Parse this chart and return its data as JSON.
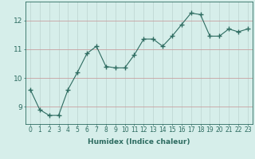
{
  "title": "",
  "xlabel": "Humidex (Indice chaleur)",
  "ylabel": "",
  "x": [
    0,
    1,
    2,
    3,
    4,
    5,
    6,
    7,
    8,
    9,
    10,
    11,
    12,
    13,
    14,
    15,
    16,
    17,
    18,
    19,
    20,
    21,
    22,
    23
  ],
  "y": [
    9.6,
    8.9,
    8.7,
    8.7,
    9.6,
    10.2,
    10.85,
    11.1,
    10.4,
    10.35,
    10.35,
    10.8,
    11.35,
    11.35,
    11.1,
    11.45,
    11.85,
    12.25,
    12.2,
    11.45,
    11.45,
    11.7,
    11.6,
    11.7
  ],
  "line_color": "#2d6b60",
  "marker": "+",
  "marker_size": 4,
  "bg_color": "#d6eeea",
  "grid_color_h": "#c8a0a0",
  "grid_color_v": "#c0d8d4",
  "text_color": "#2d6b60",
  "ylim": [
    8.4,
    12.65
  ],
  "yticks": [
    9,
    10,
    11,
    12
  ],
  "xlim": [
    -0.5,
    23.5
  ],
  "xticks": [
    0,
    1,
    2,
    3,
    4,
    5,
    6,
    7,
    8,
    9,
    10,
    11,
    12,
    13,
    14,
    15,
    16,
    17,
    18,
    19,
    20,
    21,
    22,
    23
  ],
  "xlabel_fontsize": 6.5,
  "tick_fontsize": 5.5
}
